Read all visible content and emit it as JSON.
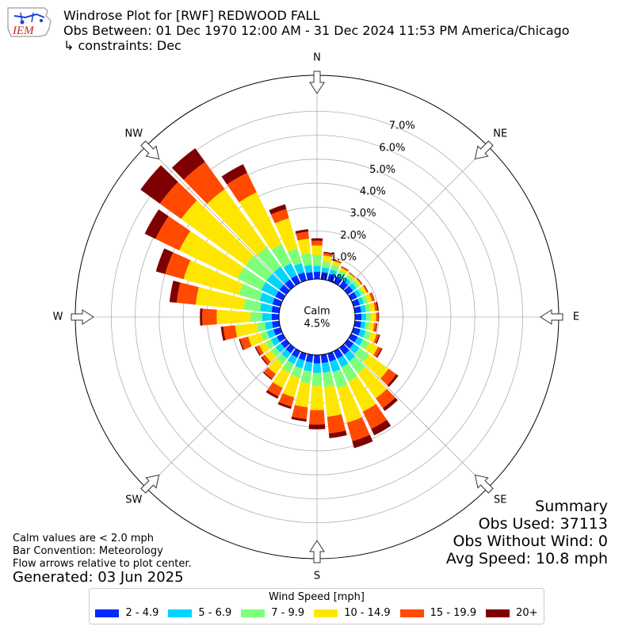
{
  "header": {
    "title": "Windrose Plot for [RWF] REDWOOD FALL",
    "obs_between": "Obs Between: 01 Dec 1970 12:00 AM - 31 Dec 2024 11:53 PM America/Chicago",
    "constraints": "↳ constraints: Dec",
    "logo_text": "IEM"
  },
  "summary": {
    "title": "Summary",
    "obs_used": "Obs Used: 37113",
    "obs_without_wind": "Obs Without Wind: 0",
    "avg_speed": "Avg Speed: 10.8 mph"
  },
  "notes": {
    "calm_note": "Calm values are < 2.0 mph",
    "bar_convention": "Bar Convention: Meteorology",
    "flow_note": "Flow arrows relative to plot center.",
    "generated": "Generated: 03 Jun 2025"
  },
  "chart_data": {
    "type": "windrose",
    "calm_label": "Calm",
    "calm_value": "4.5%",
    "calm_percent": 4.5,
    "radial_ticks": [
      "0.0%",
      "1.0%",
      "2.0%",
      "3.0%",
      "4.0%",
      "5.0%",
      "6.0%",
      "7.0%"
    ],
    "radial_max": 8.5,
    "compass_labels": [
      "N",
      "NE",
      "E",
      "SE",
      "S",
      "SW",
      "W",
      "NW"
    ],
    "legend_title": "Wind Speed [mph]",
    "speed_bins": [
      "2 - 4.9",
      "5 - 6.9",
      "7 - 9.9",
      "10 - 14.9",
      "15 - 19.9",
      "20+"
    ],
    "colors": [
      "#0029ff",
      "#00d4ff",
      "#7dff7a",
      "#ffe600",
      "#ff4a00",
      "#7f0000"
    ],
    "directions_deg": [
      0,
      10,
      20,
      30,
      40,
      50,
      60,
      70,
      80,
      90,
      100,
      110,
      120,
      130,
      140,
      150,
      160,
      170,
      180,
      190,
      200,
      210,
      220,
      230,
      240,
      250,
      260,
      270,
      280,
      290,
      300,
      310,
      320,
      330,
      340,
      350
    ],
    "cumulative_percent": [
      [
        0.3,
        0.55,
        1.0,
        1.4,
        1.6,
        1.7
      ],
      [
        0.3,
        0.5,
        0.75,
        1.0,
        1.1,
        1.15
      ],
      [
        0.28,
        0.48,
        0.7,
        0.85,
        0.9,
        0.92
      ],
      [
        0.27,
        0.45,
        0.6,
        0.7,
        0.75,
        0.77
      ],
      [
        0.27,
        0.45,
        0.6,
        0.68,
        0.7,
        0.72
      ],
      [
        0.27,
        0.45,
        0.6,
        0.7,
        0.74,
        0.76
      ],
      [
        0.27,
        0.45,
        0.6,
        0.73,
        0.78,
        0.8
      ],
      [
        0.27,
        0.45,
        0.62,
        0.8,
        0.9,
        0.92
      ],
      [
        0.27,
        0.47,
        0.65,
        0.85,
        0.95,
        1.0
      ],
      [
        0.27,
        0.47,
        0.65,
        0.88,
        0.97,
        1.0
      ],
      [
        0.27,
        0.45,
        0.62,
        0.82,
        0.92,
        0.95
      ],
      [
        0.3,
        0.52,
        0.75,
        1.0,
        1.1,
        1.15
      ],
      [
        0.3,
        0.55,
        0.85,
        1.25,
        1.4,
        1.45
      ],
      [
        0.3,
        0.6,
        1.1,
        2.1,
        2.5,
        2.6
      ],
      [
        0.35,
        0.7,
        1.3,
        2.6,
        3.1,
        3.25
      ],
      [
        0.35,
        0.75,
        1.4,
        2.8,
        3.6,
        3.9
      ],
      [
        0.35,
        0.8,
        1.5,
        3.0,
        3.8,
        4.1
      ],
      [
        0.35,
        0.75,
        1.35,
        2.6,
        3.3,
        3.5
      ],
      [
        0.35,
        0.75,
        1.3,
        2.3,
        2.9,
        3.1
      ],
      [
        0.32,
        0.7,
        1.2,
        2.2,
        2.7,
        2.8
      ],
      [
        0.3,
        0.65,
        1.05,
        1.9,
        2.3,
        2.4
      ],
      [
        0.3,
        0.6,
        1.0,
        1.7,
        2.1,
        2.2
      ],
      [
        0.28,
        0.55,
        0.85,
        1.35,
        1.6,
        1.65
      ],
      [
        0.28,
        0.55,
        0.8,
        1.1,
        1.25,
        1.3
      ],
      [
        0.28,
        0.55,
        0.8,
        1.1,
        1.25,
        1.3
      ],
      [
        0.3,
        0.58,
        0.85,
        1.4,
        1.75,
        1.8
      ],
      [
        0.3,
        0.6,
        0.95,
        1.85,
        2.35,
        2.45
      ],
      [
        0.3,
        0.7,
        1.2,
        2.6,
        3.2,
        3.3
      ],
      [
        0.32,
        0.8,
        1.5,
        3.5,
        4.3,
        4.6
      ],
      [
        0.35,
        0.9,
        1.8,
        4.2,
        5.0,
        5.4
      ],
      [
        0.35,
        1.0,
        2.1,
        4.8,
        5.9,
        6.4
      ],
      [
        0.35,
        1.0,
        2.1,
        5.4,
        6.5,
        7.5
      ],
      [
        0.35,
        1.0,
        2.0,
        5.0,
        6.4,
        7.1
      ],
      [
        0.35,
        0.9,
        1.8,
        4.2,
        5.1,
        5.5
      ],
      [
        0.35,
        0.75,
        1.4,
        2.7,
        3.1,
        3.3
      ],
      [
        0.3,
        0.6,
        1.1,
        1.7,
        2.0,
        2.1
      ]
    ]
  }
}
